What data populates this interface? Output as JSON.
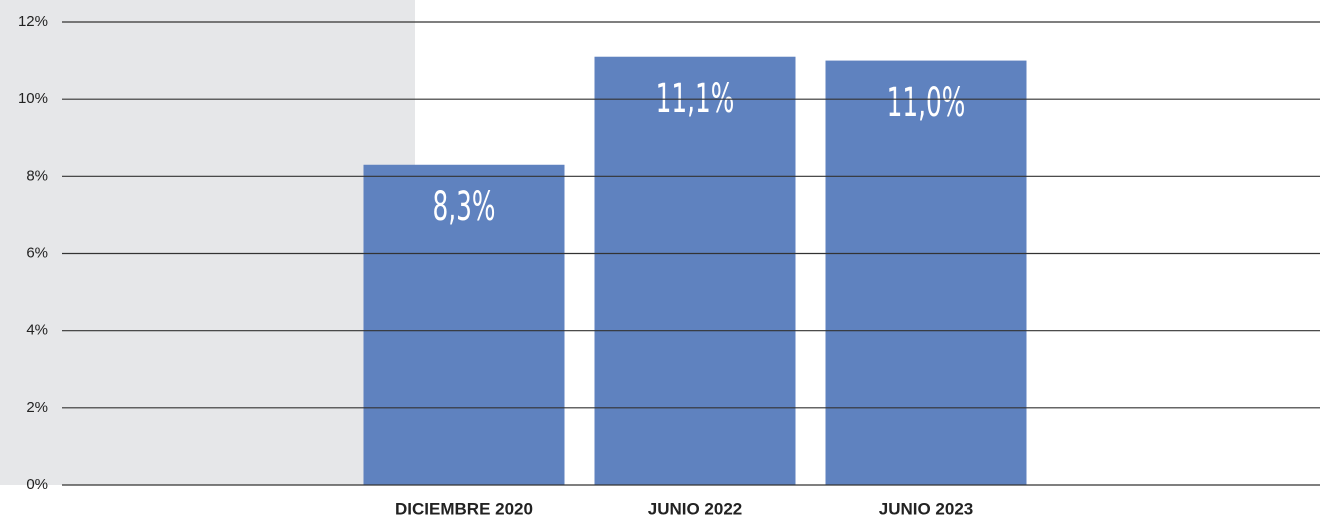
{
  "chart_data": {
    "type": "bar",
    "categories": [
      "DICIEMBRE 2020",
      "JUNIO 2022",
      "JUNIO 2023"
    ],
    "values": [
      8.3,
      11.1,
      11.0
    ],
    "value_labels": [
      "8,3%",
      "11,1%",
      "11,0%"
    ],
    "color": "#5f82bf",
    "ylim": [
      0,
      12
    ],
    "yticks": [
      {
        "value": 0,
        "label": "0%"
      },
      {
        "value": 2,
        "label": "2%"
      },
      {
        "value": 4,
        "label": "4%"
      },
      {
        "value": 6,
        "label": "6%"
      },
      {
        "value": 8,
        "label": "8%"
      },
      {
        "value": 10,
        "label": "10%"
      },
      {
        "value": 12,
        "label": "12%"
      }
    ],
    "grid": true
  }
}
